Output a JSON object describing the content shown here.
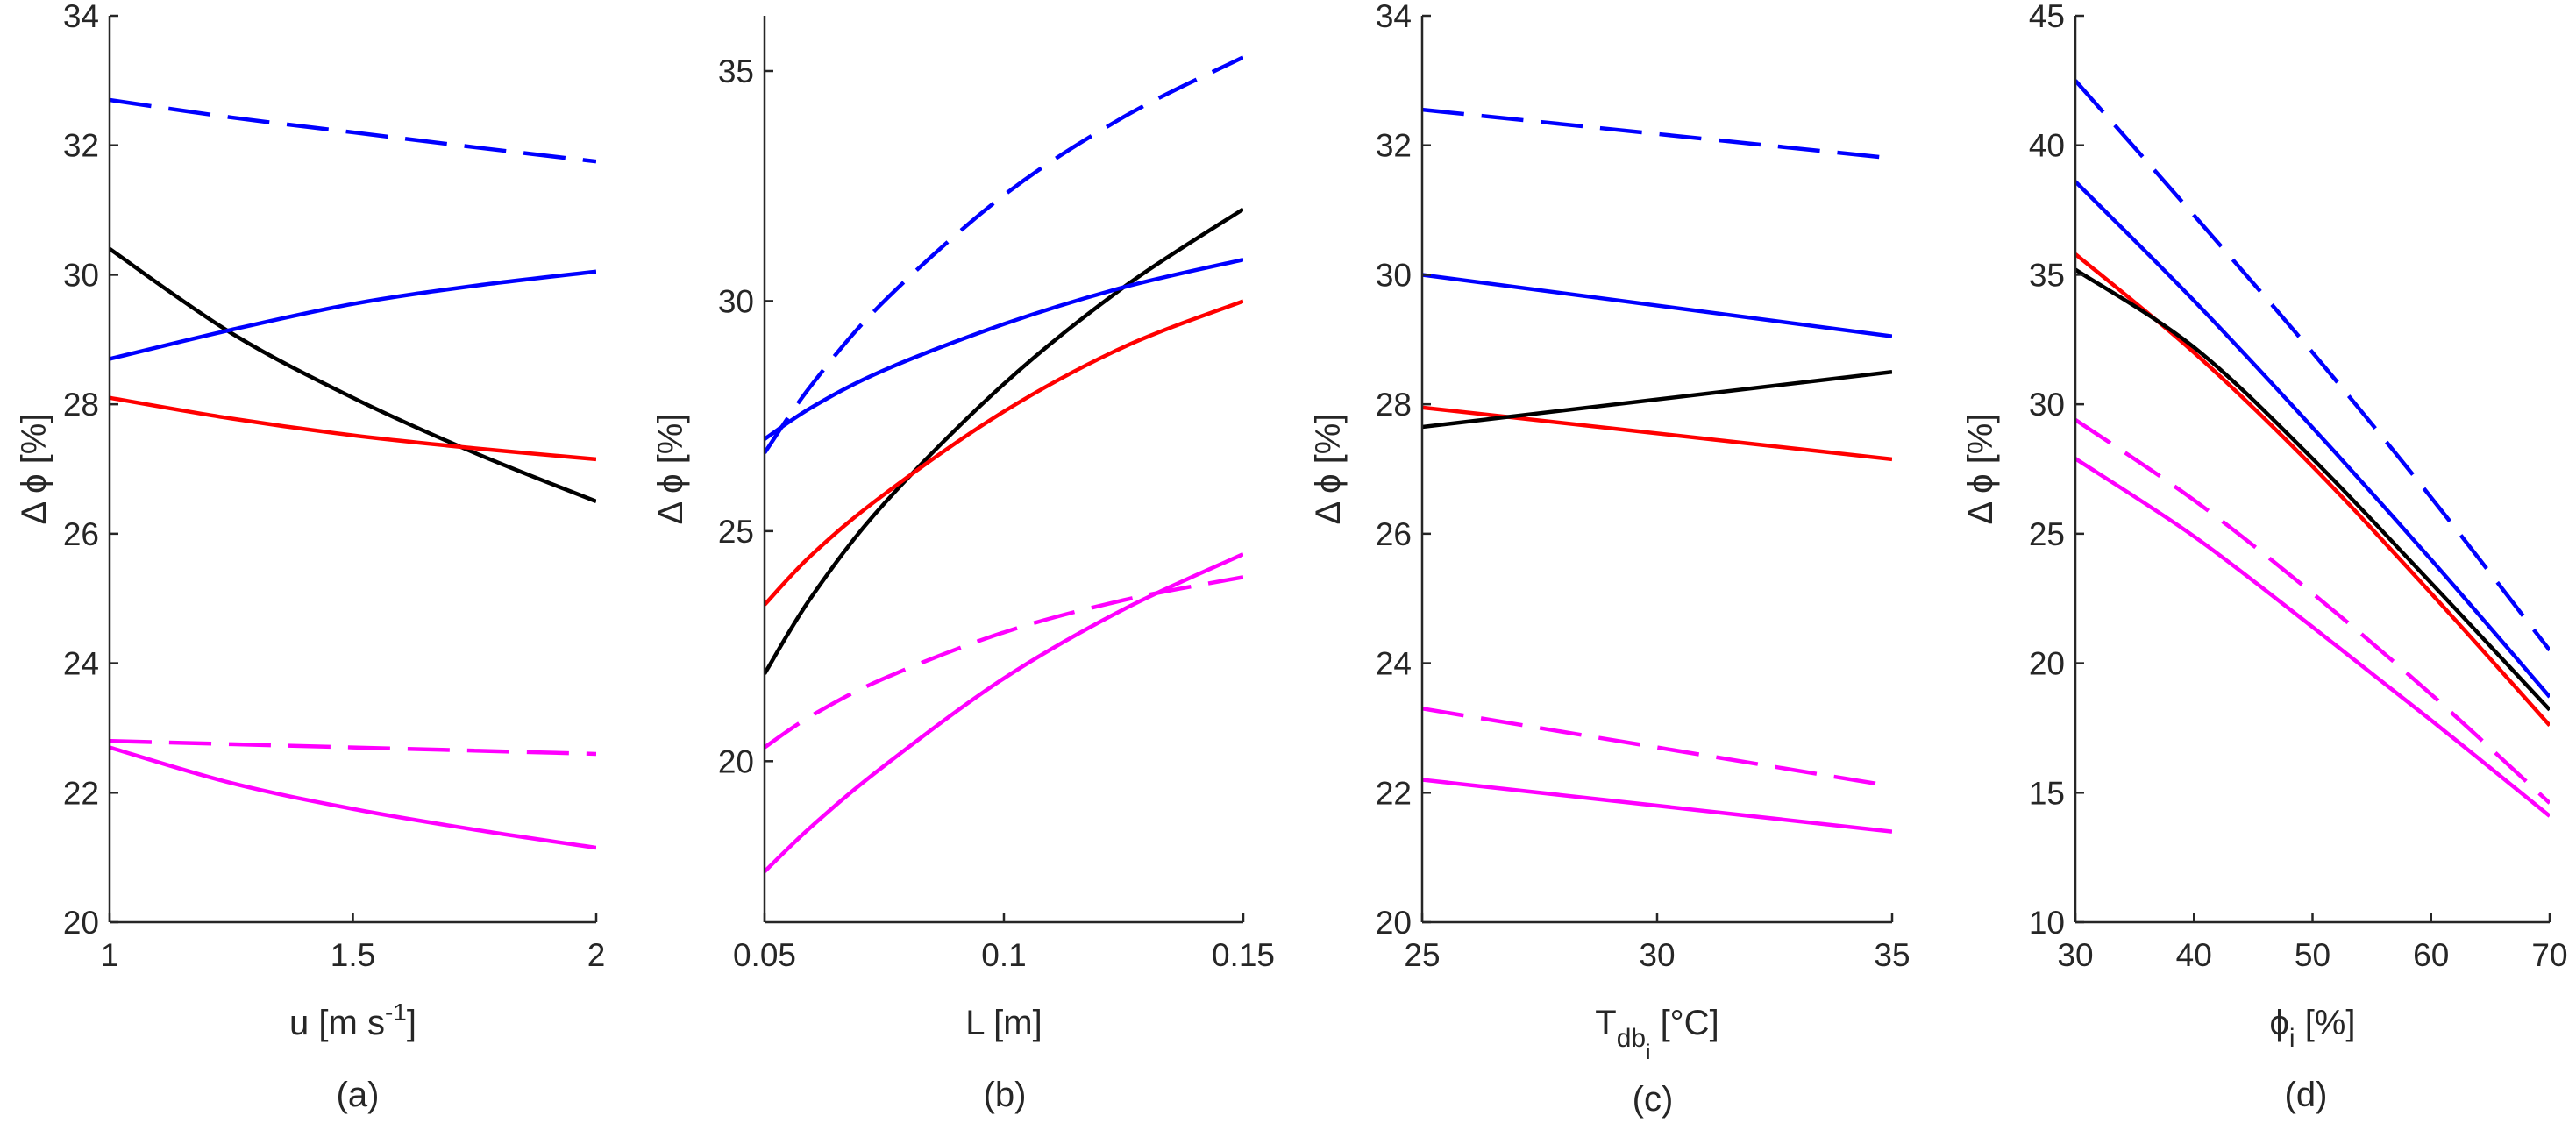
{
  "figure": {
    "captions": [
      "(a)",
      "(b)",
      "(c)",
      "(d)"
    ]
  },
  "chart_data": [
    {
      "type": "line",
      "panel": "(a)",
      "xlabel": "u [m s-1]",
      "ylabel": "Δ ϕ [%]",
      "xlim": [
        1,
        2
      ],
      "ylim": [
        20,
        34
      ],
      "xticks": [
        1,
        1.5,
        2
      ],
      "yticks": [
        20,
        22,
        24,
        26,
        28,
        30,
        32,
        34
      ],
      "x": [
        1,
        1.25,
        1.5,
        1.75,
        2
      ],
      "series": [
        {
          "name": "blue dashed",
          "color": "#0000ff",
          "dash": true,
          "values": [
            32.7,
            32.43,
            32.2,
            31.97,
            31.75
          ]
        },
        {
          "name": "black solid",
          "color": "#000000",
          "dash": false,
          "values": [
            30.4,
            29.1,
            28.1,
            27.25,
            26.5
          ]
        },
        {
          "name": "blue solid",
          "color": "#0000ff",
          "dash": false,
          "values": [
            28.7,
            29.15,
            29.55,
            29.83,
            30.05
          ]
        },
        {
          "name": "red solid",
          "color": "#ff0000",
          "dash": false,
          "values": [
            28.1,
            27.78,
            27.52,
            27.32,
            27.15
          ]
        },
        {
          "name": "magenta dashed",
          "color": "#ff00ff",
          "dash": true,
          "values": [
            22.8,
            22.75,
            22.7,
            22.65,
            22.6
          ]
        },
        {
          "name": "magenta solid",
          "color": "#ff00ff",
          "dash": false,
          "values": [
            22.7,
            22.15,
            21.75,
            21.43,
            21.15
          ]
        }
      ]
    },
    {
      "type": "line",
      "panel": "(b)",
      "xlabel": "L [m]",
      "ylabel": "Δ ϕ [%]",
      "xlim": [
        0.05,
        0.15
      ],
      "ylim": [
        16.5,
        36.2
      ],
      "xticks": [
        0.05,
        0.1,
        0.15
      ],
      "yticks": [
        20,
        25,
        30,
        35
      ],
      "x": [
        0.05,
        0.06,
        0.075,
        0.1,
        0.125,
        0.15
      ],
      "series": [
        {
          "name": "blue dashed",
          "color": "#0000ff",
          "dash": true,
          "values": [
            26.7,
            28.2,
            30.0,
            32.3,
            34.0,
            35.3
          ]
        },
        {
          "name": "black solid",
          "color": "#000000",
          "dash": false,
          "values": [
            21.9,
            23.6,
            25.6,
            28.2,
            30.3,
            32.0
          ]
        },
        {
          "name": "blue solid",
          "color": "#0000ff",
          "dash": false,
          "values": [
            27.0,
            27.7,
            28.5,
            29.5,
            30.3,
            30.9
          ]
        },
        {
          "name": "red solid",
          "color": "#ff0000",
          "dash": false,
          "values": [
            23.4,
            24.5,
            25.8,
            27.6,
            29.0,
            30.0
          ]
        },
        {
          "name": "magenta dashed",
          "color": "#ff00ff",
          "dash": true,
          "values": [
            20.3,
            21.0,
            21.8,
            22.8,
            23.5,
            24.0
          ]
        },
        {
          "name": "magenta solid",
          "color": "#ff00ff",
          "dash": false,
          "values": [
            17.6,
            18.6,
            19.9,
            21.8,
            23.3,
            24.5
          ]
        }
      ]
    },
    {
      "type": "line",
      "panel": "(c)",
      "xlabel": "T_db_i [°C]",
      "ylabel": "Δ ϕ [%]",
      "xlim": [
        25,
        35
      ],
      "ylim": [
        20,
        34
      ],
      "xticks": [
        25,
        30,
        35
      ],
      "yticks": [
        20,
        22,
        24,
        26,
        28,
        30,
        32,
        34
      ],
      "x": [
        25,
        35
      ],
      "series": [
        {
          "name": "blue dashed",
          "color": "#0000ff",
          "dash": true,
          "values": [
            32.55,
            31.8
          ]
        },
        {
          "name": "blue solid",
          "color": "#0000ff",
          "dash": false,
          "values": [
            30.0,
            29.05
          ]
        },
        {
          "name": "red solid",
          "color": "#ff0000",
          "dash": false,
          "values": [
            27.95,
            27.15
          ]
        },
        {
          "name": "black solid",
          "color": "#000000",
          "dash": false,
          "values": [
            27.65,
            28.5
          ]
        },
        {
          "name": "magenta dashed",
          "color": "#ff00ff",
          "dash": true,
          "values": [
            23.3,
            22.1
          ]
        },
        {
          "name": "magenta solid",
          "color": "#ff00ff",
          "dash": false,
          "values": [
            22.2,
            21.4
          ]
        }
      ]
    },
    {
      "type": "line",
      "panel": "(d)",
      "xlabel": "ϕ_i [%]",
      "ylabel": "Δ ϕ [%]",
      "xlim": [
        30,
        70
      ],
      "ylim": [
        10,
        45
      ],
      "xticks": [
        30,
        40,
        50,
        60,
        70
      ],
      "yticks": [
        10,
        15,
        20,
        25,
        30,
        35,
        40,
        45
      ],
      "x": [
        30,
        40,
        50,
        60,
        70
      ],
      "series": [
        {
          "name": "blue dashed",
          "color": "#0000ff",
          "dash": true,
          "values": [
            42.5,
            37.3,
            32.0,
            26.4,
            20.5
          ]
        },
        {
          "name": "blue solid",
          "color": "#0000ff",
          "dash": false,
          "values": [
            38.6,
            34.0,
            29.1,
            24.0,
            18.7
          ]
        },
        {
          "name": "red solid",
          "color": "#ff0000",
          "dash": false,
          "values": [
            35.8,
            32.0,
            27.6,
            22.7,
            17.6
          ]
        },
        {
          "name": "black solid",
          "color": "#000000",
          "dash": false,
          "values": [
            35.2,
            32.2,
            27.9,
            23.1,
            18.2
          ]
        },
        {
          "name": "magenta dashed",
          "color": "#ff00ff",
          "dash": true,
          "values": [
            29.4,
            26.3,
            22.7,
            18.8,
            14.6
          ]
        },
        {
          "name": "magenta solid",
          "color": "#ff00ff",
          "dash": false,
          "values": [
            27.9,
            24.9,
            21.4,
            17.8,
            14.1
          ]
        }
      ]
    }
  ]
}
